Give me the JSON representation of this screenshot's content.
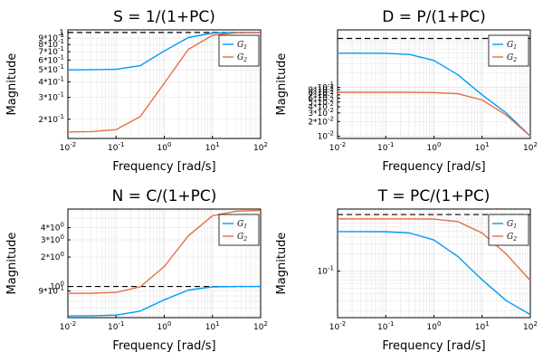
{
  "colors": {
    "g1": "#009AFA",
    "g2": "#E36F47",
    "grid": "#e6e6e6",
    "ref": "#000000"
  },
  "legend": [
    "G1",
    "G2"
  ],
  "chart_data": [
    {
      "type": "line",
      "title": "S = 1/(1+PC)",
      "xlabel": "Frequency [rad/s]",
      "ylabel": "Magnitude",
      "xscale": "log",
      "yscale": "log",
      "xlim": [
        0.01,
        100
      ],
      "ylim": [
        0.14,
        1.05
      ],
      "xticks": [
        0.01,
        0.1,
        1,
        10,
        100
      ],
      "xtick_labels": [
        "10^-2",
        "10^-1",
        "10^0",
        "10^1",
        "10^2"
      ],
      "yticks": [
        0.2,
        0.3,
        0.4,
        0.5,
        0.6,
        0.7,
        0.8,
        0.9,
        1
      ],
      "ytick_labels": [
        "2*10^-1",
        "3*10^-1",
        "4*10^-1",
        "5*10^-1",
        "6*10^-1",
        "7*10^-1",
        "8*10^-1",
        "9*10^-1",
        "1"
      ],
      "reference_line": 1,
      "legend_position": "top-right",
      "x": [
        0.01,
        0.0316,
        0.1,
        0.316,
        1,
        3.16,
        10,
        31.6,
        100
      ],
      "series": [
        {
          "name": "G1",
          "values": [
            0.5,
            0.501,
            0.505,
            0.54,
            0.71,
            0.91,
            0.99,
            1.0,
            1.0
          ]
        },
        {
          "name": "G2",
          "values": [
            0.158,
            0.159,
            0.165,
            0.21,
            0.39,
            0.73,
            0.95,
            0.995,
            1.0
          ]
        }
      ]
    },
    {
      "type": "line",
      "title": "D = P/(1+PC)",
      "xlabel": "Frequency [rad/s]",
      "ylabel": "Magnitude",
      "xscale": "log",
      "yscale": "log",
      "xlim": [
        0.01,
        100
      ],
      "ylim": [
        0.009,
        1.5
      ],
      "xticks": [
        0.01,
        0.1,
        1,
        10,
        100
      ],
      "xtick_labels": [
        "10^-2",
        "10^-1",
        "10^0",
        "10^1",
        "10^2"
      ],
      "yticks": [
        0.01,
        0.02,
        0.03,
        0.04,
        0.05,
        0.06,
        0.07,
        0.08,
        0.09,
        0.1
      ],
      "ytick_labels": [
        "10^-2",
        "2*10^-2",
        "3*10^-2",
        "4*10^-2",
        "5*10^-2",
        "6*10^-2",
        "7*10^-2",
        "8*10^-2",
        "9*10^-2",
        "10^-1"
      ],
      "reference_line": 1,
      "legend_position": "top-right",
      "x": [
        0.01,
        0.0316,
        0.1,
        0.316,
        1,
        3.16,
        10,
        31.6,
        100
      ],
      "series": [
        {
          "name": "G1",
          "values": [
            0.5,
            0.5,
            0.497,
            0.47,
            0.355,
            0.18,
            0.07,
            0.03,
            0.01
          ]
        },
        {
          "name": "G2",
          "values": [
            0.079,
            0.079,
            0.079,
            0.079,
            0.078,
            0.074,
            0.055,
            0.027,
            0.01
          ]
        }
      ]
    },
    {
      "type": "line",
      "title": "N = C/(1+PC)",
      "xlabel": "Frequency [rad/s]",
      "ylabel": "Magnitude",
      "xscale": "log",
      "yscale": "log",
      "xlim": [
        0.01,
        100
      ],
      "ylim": [
        0.48,
        6.2
      ],
      "xticks": [
        0.01,
        0.1,
        1,
        10,
        100
      ],
      "xtick_labels": [
        "10^-2",
        "10^-1",
        "10^0",
        "10^1",
        "10^2"
      ],
      "yticks": [
        0.9,
        1,
        2,
        3,
        4
      ],
      "ytick_labels": [
        "9*10^-1",
        "10^0",
        "2*10^0",
        "3*10^0",
        "4*10^0"
      ],
      "reference_line": 1,
      "legend_position": "top-right",
      "x": [
        0.01,
        0.0316,
        0.1,
        0.316,
        1,
        3.16,
        10,
        31.6,
        100
      ],
      "series": [
        {
          "name": "G1",
          "values": [
            0.5,
            0.502,
            0.51,
            0.56,
            0.73,
            0.92,
            0.99,
            1.0,
            1.0
          ]
        },
        {
          "name": "G2",
          "values": [
            0.85,
            0.853,
            0.87,
            0.99,
            1.6,
            3.3,
            5.3,
            5.9,
            6.0
          ]
        }
      ]
    },
    {
      "type": "line",
      "title": "T = PC/(1+PC)",
      "xlabel": "Frequency [rad/s]",
      "ylabel": "Magnitude",
      "xscale": "log",
      "yscale": "log",
      "xlim": [
        0.01,
        100
      ],
      "ylim": [
        0.015,
        1.25
      ],
      "xticks": [
        0.01,
        0.1,
        1,
        10,
        100
      ],
      "xtick_labels": [
        "10^-2",
        "10^-1",
        "10^0",
        "10^1",
        "10^2"
      ],
      "yticks": [
        0.1
      ],
      "ytick_labels": [
        "10^-1"
      ],
      "reference_line": 1,
      "legend_position": "top-right",
      "x": [
        0.01,
        0.0316,
        0.1,
        0.316,
        1,
        3.16,
        10,
        31.6,
        100
      ],
      "series": [
        {
          "name": "G1",
          "values": [
            0.5,
            0.5,
            0.497,
            0.47,
            0.355,
            0.18,
            0.07,
            0.03,
            0.017
          ]
        },
        {
          "name": "G2",
          "values": [
            0.84,
            0.84,
            0.84,
            0.84,
            0.83,
            0.75,
            0.47,
            0.2,
            0.068
          ]
        }
      ]
    }
  ]
}
